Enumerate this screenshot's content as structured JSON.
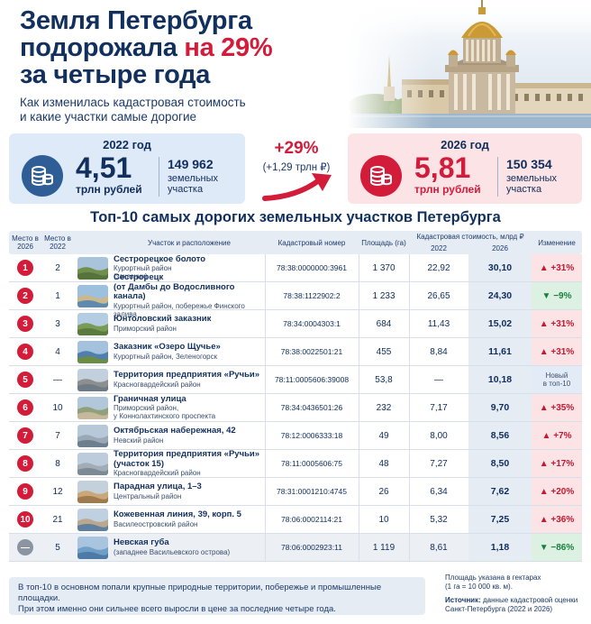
{
  "header": {
    "title_line1": "Земля Петербурга",
    "title_line2_a": "подорожала ",
    "title_line2_b": "на 29%",
    "title_line3": "за четыре года",
    "subtitle_line1": "Как изменилась кадастровая стоимость",
    "subtitle_line2": "и какие участки самые дорогие"
  },
  "summary": {
    "y2022": {
      "year": "2022 год",
      "value": "4,51",
      "unit": "трлн рублей",
      "count": "149 962",
      "count_label": "земельных участка"
    },
    "change": {
      "pct": "+29%",
      "abs": "(+1,29 трлн ₽)"
    },
    "y2026": {
      "year": "2026 год",
      "value": "5,81",
      "unit": "трлн рублей",
      "count": "150 354",
      "count_label": "земельных участка"
    }
  },
  "table": {
    "title": "Топ-10 самых дорогих земельных участков Петербурга",
    "headers": {
      "rank": "Место в 2026",
      "prev": "Место в 2022",
      "name": "Участок и расположение",
      "cad": "Кадастровый номер",
      "area": "Площадь (га)",
      "value": "Кадастровая стоимость, млрд ₽",
      "v22": "2022",
      "v26": "2026",
      "chg": "Изменение"
    },
    "rows": [
      {
        "rank": "1",
        "prev": "2",
        "name": "Сестрорецкое болото",
        "desc": "Курортный район\n(заказник)",
        "cad": "78:38:0000000:3961",
        "area": "1 370",
        "v22": "22,92",
        "v26": "30,10",
        "chg": "▲ +31%",
        "dir": "up"
      },
      {
        "rank": "2",
        "prev": "1",
        "name": "Сестрорецк\n(от Дамбы до Водосливного канала)",
        "desc": "Курортный район, побережье Финского залива",
        "cad": "78:38:1122902:2",
        "area": "1 233",
        "v22": "26,65",
        "v26": "24,30",
        "chg": "▼ −9%",
        "dir": "down"
      },
      {
        "rank": "3",
        "prev": "3",
        "name": "Юнтоловский заказник",
        "desc": "Приморский район",
        "cad": "78:34:0004303:1",
        "area": "684",
        "v22": "11,43",
        "v26": "15,02",
        "chg": "▲ +31%",
        "dir": "up"
      },
      {
        "rank": "4",
        "prev": "4",
        "name": "Заказник «Озеро Щучье»",
        "desc": "Курортный район, Зеленогорск",
        "cad": "78:38:0022501:21",
        "area": "455",
        "v22": "8,84",
        "v26": "11,61",
        "chg": "▲ +31%",
        "dir": "up"
      },
      {
        "rank": "5",
        "prev": "—",
        "name": "Территория предприятия «Ручьи»",
        "desc": "Красногвардейский район",
        "cad": "78:11:0005606:39008",
        "area": "53,8",
        "v22": "—",
        "v26": "10,18",
        "chg": "Новый\nв топ-10",
        "dir": "new"
      },
      {
        "rank": "6",
        "prev": "10",
        "name": "Граничная улица",
        "desc": "Приморский район,\nу Коннолахтинского проспекта",
        "cad": "78:34:0436501:26",
        "area": "232",
        "v22": "7,17",
        "v26": "9,70",
        "chg": "▲ +35%",
        "dir": "up"
      },
      {
        "rank": "7",
        "prev": "7",
        "name": "Октябрьская набережная, 42",
        "desc": "Невский район",
        "cad": "78:12:0006333:18",
        "area": "49",
        "v22": "8,00",
        "v26": "8,56",
        "chg": "▲ +7%",
        "dir": "up"
      },
      {
        "rank": "8",
        "prev": "8",
        "name": "Территория предприятия «Ручьи»\n(участок 15)",
        "desc": "Красногвардейский район",
        "cad": "78:11:0005606:75",
        "area": "48",
        "v22": "7,27",
        "v26": "8,50",
        "chg": "▲ +17%",
        "dir": "up"
      },
      {
        "rank": "9",
        "prev": "12",
        "name": "Парадная улица, 1–3",
        "desc": "Центральный район",
        "cad": "78:31:0001210:4745",
        "area": "26",
        "v22": "6,34",
        "v26": "7,62",
        "chg": "▲ +20%",
        "dir": "up"
      },
      {
        "rank": "10",
        "prev": "21",
        "name": "Кожевенная линия, 39, корп. 5",
        "desc": "Василеостровский район",
        "cad": "78:06:0002114:21",
        "area": "10",
        "v22": "5,32",
        "v26": "7,25",
        "chg": "▲ +36%",
        "dir": "up"
      },
      {
        "rank": "—",
        "prev": "5",
        "name": "Невская губа",
        "desc": "(западнее Васильевского острова)",
        "cad": "78:06:0002923:11",
        "area": "1 119",
        "v22": "8,61",
        "v26": "1,18",
        "chg": "▼ −86%",
        "dir": "down"
      }
    ]
  },
  "footer": {
    "note_line1": "В топ-10 в основном попали крупные природные территории, побережье и промышленные площадки.",
    "note_line2": "При этом именно они сильнее всего выросли в цене за последние четыре года.",
    "area_note_line1": "Площадь указана в гектарах",
    "area_note_line2": "(1 га = 10 000 кв. м).",
    "source_label": "Источник:",
    "source_text": " данные кадастровой оценки Санкт-Петербурга (2022 и 2026)"
  },
  "colors": {
    "navy": "#12305e",
    "red": "#d21c3a",
    "green": "#18803c",
    "light_blue": "#dfeaf8",
    "light_pink": "#fbe3e6"
  }
}
